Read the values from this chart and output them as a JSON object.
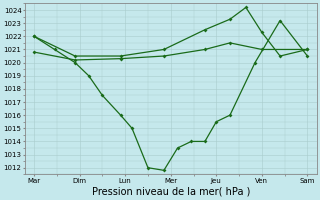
{
  "xlabel": "Pression niveau de la mer( hPa )",
  "x_labels": [
    "Mar",
    "Dim",
    "Lun",
    "Mer",
    "Jeu",
    "Ven",
    "Sam"
  ],
  "ylim": [
    1011.5,
    1024.5
  ],
  "yticks": [
    1012,
    1013,
    1014,
    1015,
    1016,
    1017,
    1018,
    1019,
    1020,
    1021,
    1022,
    1023,
    1024
  ],
  "line1_x": [
    0,
    0.45,
    0.9,
    1.2,
    1.5,
    1.9,
    2.15,
    2.5,
    2.85,
    3.15,
    3.45,
    3.75,
    4.0,
    4.3,
    4.85,
    5.4,
    6.0
  ],
  "line1_y": [
    1022,
    1021,
    1020.0,
    1019.0,
    1017.5,
    1016.0,
    1015.0,
    1012.0,
    1011.8,
    1013.5,
    1014.0,
    1014.0,
    1015.5,
    1016.0,
    1020.0,
    1023.2,
    1020.5
  ],
  "line2_x": [
    0,
    0.9,
    1.9,
    2.85,
    3.75,
    4.3,
    4.65,
    5.0,
    5.4,
    6.0
  ],
  "line2_y": [
    1022.0,
    1020.5,
    1020.5,
    1021.0,
    1022.5,
    1023.3,
    1024.2,
    1022.3,
    1020.5,
    1021.0
  ],
  "line3_x": [
    0,
    0.9,
    1.9,
    2.85,
    3.75,
    4.3,
    5.0,
    6.0
  ],
  "line3_y": [
    1020.8,
    1020.2,
    1020.3,
    1020.5,
    1021.0,
    1021.5,
    1021.0,
    1021.0
  ],
  "color": "#1a6b1a",
  "lw": 0.9,
  "ms": 2.0,
  "bg_color": "#c5e8ec",
  "grid_color": "#aacccc",
  "tick_fontsize": 5.0,
  "xlabel_fontsize": 7.0
}
